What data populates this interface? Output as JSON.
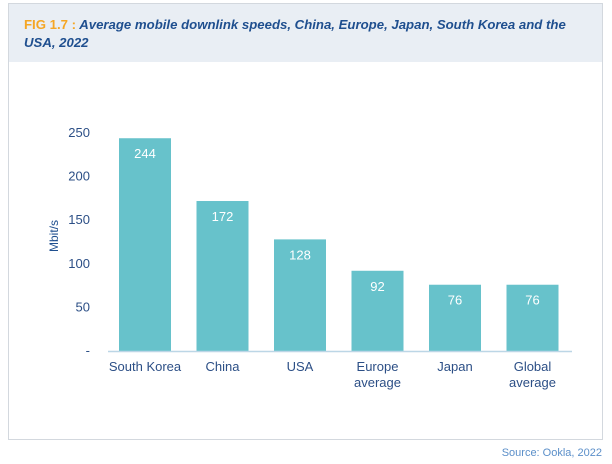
{
  "figure": {
    "label": "FIG 1.7 :",
    "title": "Average mobile downlink speeds, China, Europe, Japan, South Korea and the USA, 2022",
    "source": "Source: Ookla, 2022"
  },
  "chart_data": {
    "type": "bar",
    "title": "Average mobile downlink speeds, China, Europe, Japan, South Korea and the USA, 2022",
    "xlabel": "",
    "ylabel": "Mbit/s",
    "ylim": [
      0,
      250
    ],
    "yticks": [
      0,
      50,
      100,
      150,
      200,
      250
    ],
    "ytick_labels": [
      "-",
      "50",
      "100",
      "150",
      "200",
      "250"
    ],
    "categories": [
      [
        "South Korea"
      ],
      [
        "China"
      ],
      [
        "USA"
      ],
      [
        "Europe",
        "average"
      ],
      [
        "Japan"
      ],
      [
        "Global",
        "average"
      ]
    ],
    "values": [
      244,
      172,
      128,
      92,
      76,
      76
    ],
    "data_labels": [
      "244",
      "172",
      "128",
      "92",
      "76",
      "76"
    ],
    "bar_color": "#67c2cb",
    "grid": false,
    "legend": "none"
  }
}
